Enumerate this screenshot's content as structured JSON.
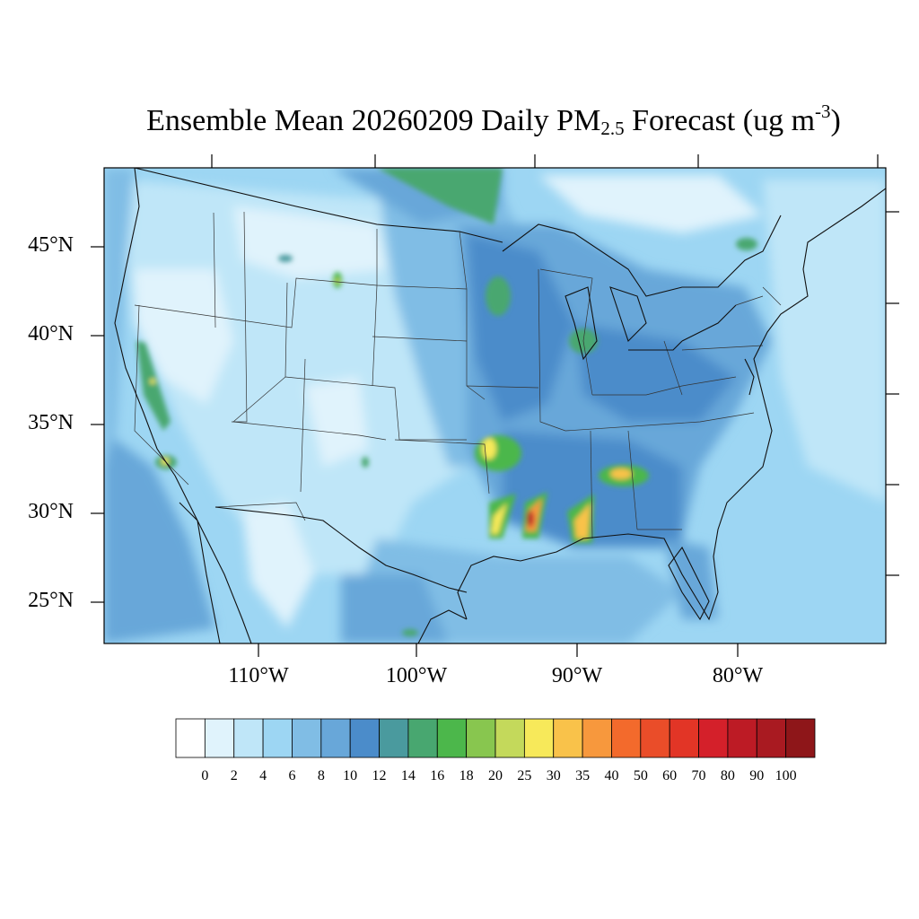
{
  "title": {
    "main": "Ensemble Mean 20260209 Daily PM",
    "sub": "2.5",
    "mid": " Forecast (ug m",
    "sup": "-3",
    "end": ")"
  },
  "latitude_labels": [
    "45°N",
    "40°N",
    "35°N",
    "30°N",
    "25°N"
  ],
  "longitude_labels": [
    "110°W",
    "100°W",
    "90°W",
    "80°W"
  ],
  "colorbar": {
    "labels": [
      "0",
      "2",
      "4",
      "6",
      "8",
      "10",
      "12",
      "14",
      "16",
      "18",
      "20",
      "25",
      "30",
      "35",
      "40",
      "50",
      "60",
      "70",
      "80",
      "90",
      "100"
    ],
    "colors": [
      "#ffffff",
      "#e0f3fc",
      "#bfe6f8",
      "#9dd6f3",
      "#80bde5",
      "#68a7d9",
      "#4b8cca",
      "#4a9a9e",
      "#48a770",
      "#4cb74b",
      "#88c64f",
      "#c4d95b",
      "#f7e95a",
      "#f9c24a",
      "#f7983d",
      "#f36a2c",
      "#ea4d29",
      "#e23526",
      "#d4202a",
      "#bd1b25",
      "#a91a21",
      "#8e1619"
    ]
  },
  "map": {
    "colors": {
      "base_ocean": "#9dd6f3",
      "land_light": "#bfe6f8",
      "land_pale": "#e0f3fc",
      "medium": "#80bde5",
      "dark": "#68a7d9",
      "deep": "#4b8cca",
      "teal": "#4a9a9e",
      "green": "#48a770",
      "bright_green": "#4cb74b",
      "lime": "#88c64f",
      "yellow": "#f7e95a",
      "orange": "#f7983d",
      "red": "#e23526",
      "dark_red": "#bd1b25"
    }
  }
}
